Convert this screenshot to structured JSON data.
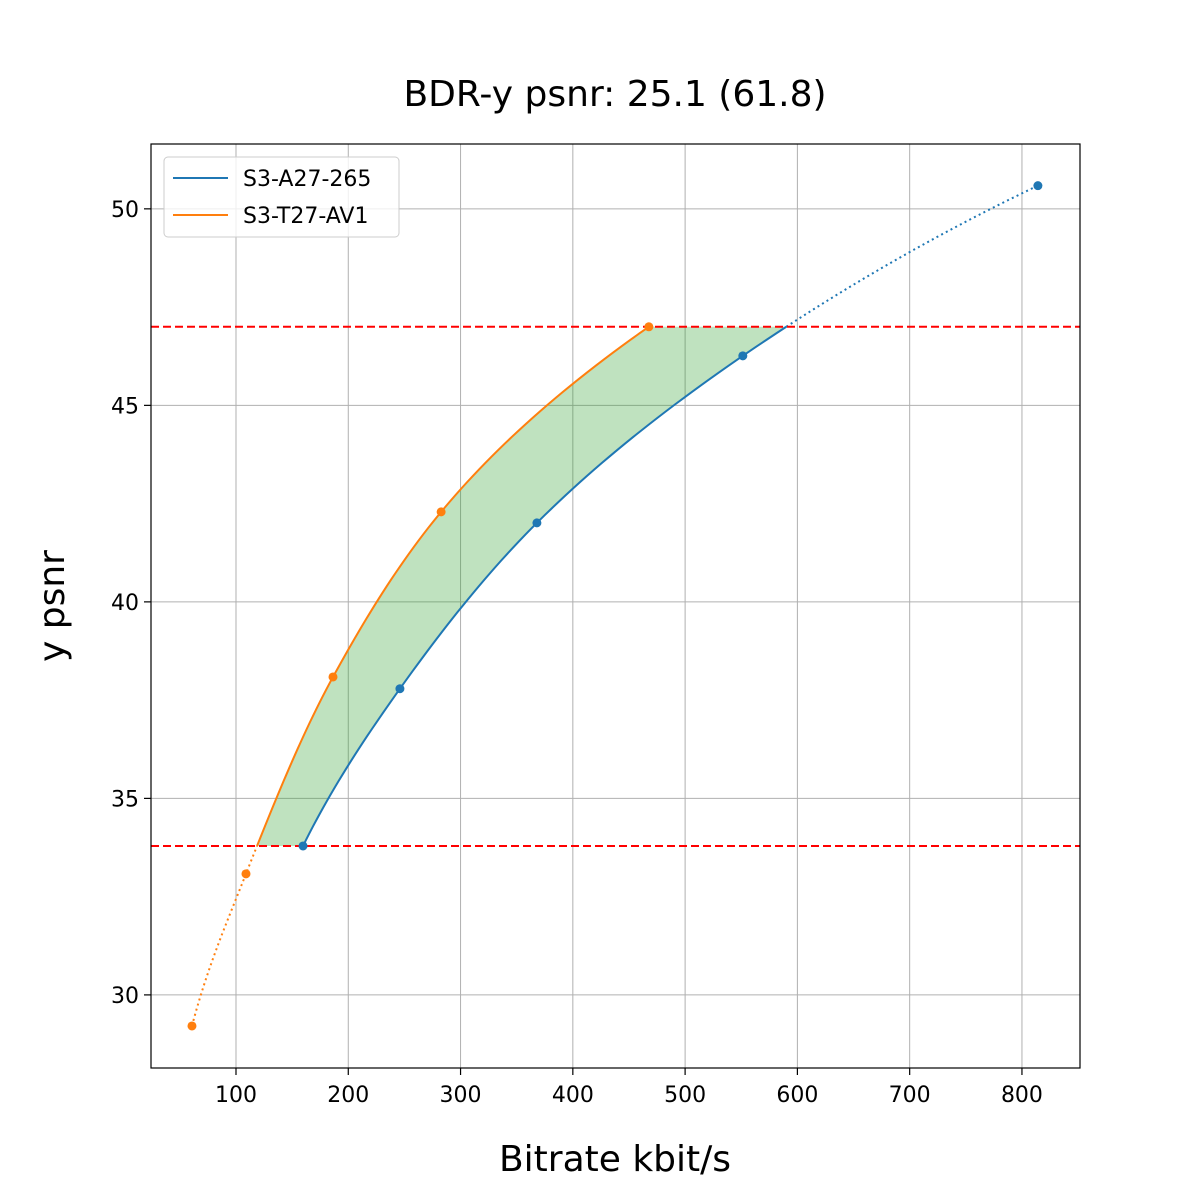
{
  "chart_data": {
    "type": "line",
    "title": "BDR-y psnr: 25.1 (61.8)",
    "xlabel": "Bitrate kbit/s",
    "ylabel": "y psnr",
    "xlim": [
      24.3,
      851.7
    ],
    "ylim": [
      28.14,
      51.65
    ],
    "xticks": [
      100,
      200,
      300,
      400,
      500,
      600,
      700,
      800
    ],
    "yticks": [
      30,
      35,
      40,
      45,
      50
    ],
    "grid": true,
    "legend_position": "top-left",
    "series": [
      {
        "name": "S3-A27-265",
        "color": "#1f77b4",
        "points": [
          [
            159.7,
            33.79
          ],
          [
            246.0,
            37.79
          ],
          [
            368.0,
            42.01
          ],
          [
            551.4,
            46.26
          ],
          [
            814.2,
            50.59
          ]
        ]
      },
      {
        "name": "S3-T27-AV1",
        "color": "#ff7f0e",
        "points": [
          [
            60.8,
            29.21
          ],
          [
            108.9,
            33.08
          ],
          [
            186.4,
            38.09
          ],
          [
            282.7,
            42.29
          ],
          [
            467.7,
            47.0
          ]
        ]
      }
    ],
    "hlines": [
      33.79,
      47.0
    ],
    "hline_color": "#ff0000",
    "fill_color": "#2ca02c",
    "fill_range": [
      33.79,
      47.0
    ]
  }
}
